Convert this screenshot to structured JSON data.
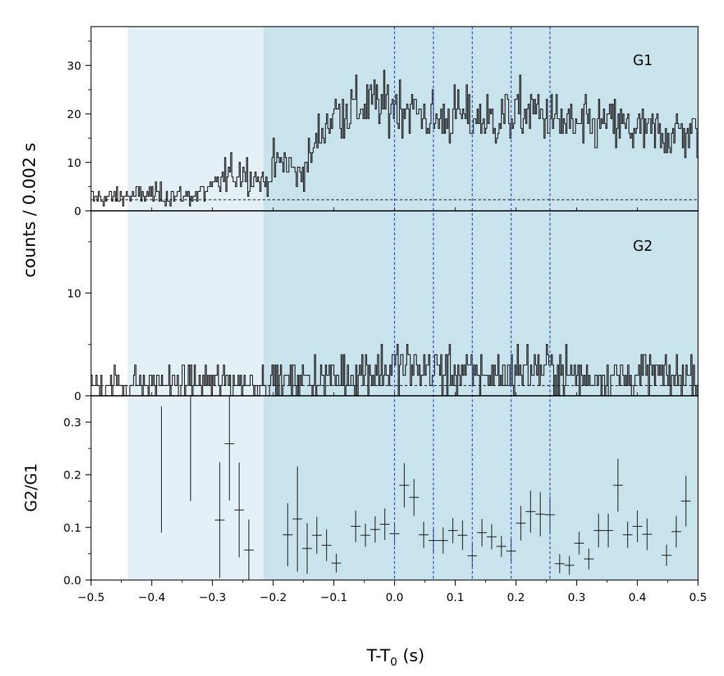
{
  "chart_data": {
    "type": "line",
    "xlabel": "T-T",
    "xlabel_sub": "0",
    "xlabel_unit": " (s)",
    "ylabel_counts": "counts /  0.002 s",
    "ylabel_ratio": "G2/G1",
    "xlim": [
      -0.5,
      0.5
    ],
    "x_ticks": [
      -0.5,
      -0.4,
      -0.3,
      -0.2,
      -0.1,
      0.0,
      0.1,
      0.2,
      0.3,
      0.4,
      0.5
    ],
    "x_tick_labels": [
      "−0.5",
      "−0.4",
      "−0.3",
      "−0.2",
      "−0.1",
      "0.0",
      "0.1",
      "0.2",
      "0.3",
      "0.4",
      "0.5"
    ],
    "shaded_regions": [
      {
        "from": -0.44,
        "to": -0.216,
        "color": "#e3f1f6"
      },
      {
        "from": -0.216,
        "to": 0.5,
        "color": "#c8e3ec"
      }
    ],
    "vertical_lines": [
      0.0,
      0.064,
      0.128,
      0.192,
      0.256
    ],
    "vline_color": "#1f3fd6",
    "panels": [
      {
        "name": "G1",
        "label": "G1",
        "ylim": [
          0,
          38
        ],
        "y_ticks": [
          0,
          10,
          20,
          30
        ],
        "y_tick_labels": [
          "0",
          "10",
          "20",
          "30"
        ],
        "background_level": 2.3,
        "segments": [
          {
            "x": -0.5,
            "y": 2.5
          },
          {
            "x": -0.44,
            "y": 3
          },
          {
            "x": -0.4,
            "y": 3.5
          },
          {
            "x": -0.34,
            "y": 3
          },
          {
            "x": -0.3,
            "y": 4.5
          },
          {
            "x": -0.28,
            "y": 7
          },
          {
            "x": -0.25,
            "y": 8.5
          },
          {
            "x": -0.23,
            "y": 7
          },
          {
            "x": -0.216,
            "y": 5.5
          },
          {
            "x": -0.2,
            "y": 9
          },
          {
            "x": -0.18,
            "y": 10.5
          },
          {
            "x": -0.16,
            "y": 7
          },
          {
            "x": -0.14,
            "y": 11
          },
          {
            "x": -0.12,
            "y": 17
          },
          {
            "x": -0.1,
            "y": 20
          },
          {
            "x": -0.08,
            "y": 21
          },
          {
            "x": -0.06,
            "y": 21.5
          },
          {
            "x": -0.03,
            "y": 22
          },
          {
            "x": 0.0,
            "y": 22
          },
          {
            "x": 0.03,
            "y": 21
          },
          {
            "x": 0.064,
            "y": 18.5
          },
          {
            "x": 0.1,
            "y": 20
          },
          {
            "x": 0.128,
            "y": 19
          },
          {
            "x": 0.16,
            "y": 18.5
          },
          {
            "x": 0.192,
            "y": 20
          },
          {
            "x": 0.23,
            "y": 20.5
          },
          {
            "x": 0.256,
            "y": 19
          },
          {
            "x": 0.3,
            "y": 17
          },
          {
            "x": 0.35,
            "y": 18
          },
          {
            "x": 0.4,
            "y": 16.5
          },
          {
            "x": 0.45,
            "y": 16
          },
          {
            "x": 0.5,
            "y": 16
          }
        ]
      },
      {
        "name": "G2",
        "label": "G2",
        "ylim": [
          0,
          18
        ],
        "y_ticks": [
          0,
          10
        ],
        "y_tick_labels": [
          "0",
          "10"
        ],
        "background_level": 1.0,
        "segments": [
          {
            "x": -0.5,
            "y": 1
          },
          {
            "x": -0.4,
            "y": 1.2
          },
          {
            "x": -0.3,
            "y": 1.3
          },
          {
            "x": -0.216,
            "y": 1.4
          },
          {
            "x": -0.15,
            "y": 1.6
          },
          {
            "x": -0.1,
            "y": 1.9
          },
          {
            "x": -0.05,
            "y": 2.4
          },
          {
            "x": 0.0,
            "y": 2.8
          },
          {
            "x": 0.05,
            "y": 2.6
          },
          {
            "x": 0.1,
            "y": 2.3
          },
          {
            "x": 0.15,
            "y": 2.0
          },
          {
            "x": 0.2,
            "y": 2.4
          },
          {
            "x": 0.25,
            "y": 2.6
          },
          {
            "x": 0.3,
            "y": 1.9
          },
          {
            "x": 0.35,
            "y": 1.8
          },
          {
            "x": 0.4,
            "y": 2.0
          },
          {
            "x": 0.45,
            "y": 1.9
          },
          {
            "x": 0.5,
            "y": 2.0
          }
        ]
      }
    ],
    "ratio": {
      "ylim": [
        0.0,
        0.35
      ],
      "y_ticks": [
        0.0,
        0.1,
        0.2,
        0.3
      ],
      "y_tick_labels": [
        "0.0",
        "0.1",
        "0.2",
        "0.3"
      ],
      "points": [
        {
          "x": -0.384,
          "y": 0.21,
          "xerr": 0,
          "yerr": 0.12
        },
        {
          "x": -0.336,
          "y": 0.27,
          "xerr": 0,
          "yerr": 0.12
        },
        {
          "x": -0.288,
          "y": 0.114,
          "xerr": 0.008,
          "yerr": 0.11
        },
        {
          "x": -0.272,
          "y": 0.259,
          "xerr": 0.008,
          "yerr": 0.108
        },
        {
          "x": -0.256,
          "y": 0.133,
          "xerr": 0.008,
          "yerr": 0.09
        },
        {
          "x": -0.24,
          "y": 0.057,
          "xerr": 0.008,
          "yerr": 0.058
        },
        {
          "x": -0.176,
          "y": 0.086,
          "xerr": 0.008,
          "yerr": 0.06
        },
        {
          "x": -0.16,
          "y": 0.116,
          "xerr": 0.008,
          "yerr": 0.1
        },
        {
          "x": -0.144,
          "y": 0.06,
          "xerr": 0.008,
          "yerr": 0.048
        },
        {
          "x": -0.128,
          "y": 0.085,
          "xerr": 0.008,
          "yerr": 0.035
        },
        {
          "x": -0.112,
          "y": 0.066,
          "xerr": 0.008,
          "yerr": 0.03
        },
        {
          "x": -0.096,
          "y": 0.032,
          "xerr": 0.008,
          "yerr": 0.018
        },
        {
          "x": -0.064,
          "y": 0.102,
          "xerr": 0.008,
          "yerr": 0.03
        },
        {
          "x": -0.048,
          "y": 0.085,
          "xerr": 0.008,
          "yerr": 0.022
        },
        {
          "x": -0.032,
          "y": 0.096,
          "xerr": 0.008,
          "yerr": 0.025
        },
        {
          "x": -0.016,
          "y": 0.106,
          "xerr": 0.008,
          "yerr": 0.03
        },
        {
          "x": 0.0,
          "y": 0.088,
          "xerr": 0.008,
          "yerr": 0.022
        },
        {
          "x": 0.016,
          "y": 0.18,
          "xerr": 0.008,
          "yerr": 0.042
        },
        {
          "x": 0.032,
          "y": 0.157,
          "xerr": 0.008,
          "yerr": 0.035
        },
        {
          "x": 0.048,
          "y": 0.086,
          "xerr": 0.008,
          "yerr": 0.025
        },
        {
          "x": 0.064,
          "y": 0.075,
          "xerr": 0.008,
          "yerr": 0.025
        },
        {
          "x": 0.08,
          "y": 0.075,
          "xerr": 0.008,
          "yerr": 0.025
        },
        {
          "x": 0.096,
          "y": 0.094,
          "xerr": 0.008,
          "yerr": 0.024
        },
        {
          "x": 0.112,
          "y": 0.085,
          "xerr": 0.008,
          "yerr": 0.028
        },
        {
          "x": 0.128,
          "y": 0.046,
          "xerr": 0.008,
          "yerr": 0.025
        },
        {
          "x": 0.144,
          "y": 0.09,
          "xerr": 0.008,
          "yerr": 0.026
        },
        {
          "x": 0.16,
          "y": 0.082,
          "xerr": 0.008,
          "yerr": 0.024
        },
        {
          "x": 0.176,
          "y": 0.064,
          "xerr": 0.008,
          "yerr": 0.02
        },
        {
          "x": 0.192,
          "y": 0.055,
          "xerr": 0.008,
          "yerr": 0.024
        },
        {
          "x": 0.208,
          "y": 0.108,
          "xerr": 0.008,
          "yerr": 0.033
        },
        {
          "x": 0.224,
          "y": 0.13,
          "xerr": 0.008,
          "yerr": 0.04
        },
        {
          "x": 0.24,
          "y": 0.125,
          "xerr": 0.008,
          "yerr": 0.042
        },
        {
          "x": 0.256,
          "y": 0.124,
          "xerr": 0.008,
          "yerr": 0.035
        },
        {
          "x": 0.272,
          "y": 0.031,
          "xerr": 0.008,
          "yerr": 0.018
        },
        {
          "x": 0.288,
          "y": 0.028,
          "xerr": 0.008,
          "yerr": 0.018
        },
        {
          "x": 0.304,
          "y": 0.07,
          "xerr": 0.008,
          "yerr": 0.022
        },
        {
          "x": 0.32,
          "y": 0.04,
          "xerr": 0.008,
          "yerr": 0.02
        },
        {
          "x": 0.336,
          "y": 0.094,
          "xerr": 0.008,
          "yerr": 0.032
        },
        {
          "x": 0.352,
          "y": 0.094,
          "xerr": 0.008,
          "yerr": 0.032
        },
        {
          "x": 0.368,
          "y": 0.18,
          "xerr": 0.008,
          "yerr": 0.05
        },
        {
          "x": 0.384,
          "y": 0.086,
          "xerr": 0.008,
          "yerr": 0.025
        },
        {
          "x": 0.4,
          "y": 0.102,
          "xerr": 0.008,
          "yerr": 0.03
        },
        {
          "x": 0.416,
          "y": 0.087,
          "xerr": 0.008,
          "yerr": 0.03
        },
        {
          "x": 0.448,
          "y": 0.047,
          "xerr": 0.008,
          "yerr": 0.02
        },
        {
          "x": 0.464,
          "y": 0.092,
          "xerr": 0.008,
          "yerr": 0.03
        },
        {
          "x": 0.48,
          "y": 0.15,
          "xerr": 0.008,
          "yerr": 0.048
        }
      ]
    }
  }
}
